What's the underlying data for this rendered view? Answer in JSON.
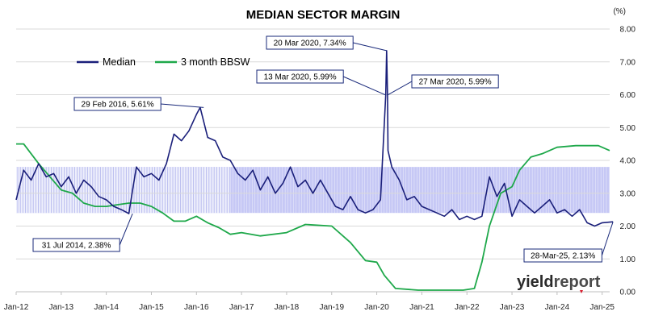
{
  "chart_data": {
    "type": "line",
    "title": "MEDIAN SECTOR MARGIN",
    "y_unit": "(%)",
    "ylim": [
      0,
      8
    ],
    "y_ticks": [
      "0.00",
      "1.00",
      "2.00",
      "3.00",
      "4.00",
      "5.00",
      "6.00",
      "7.00",
      "8.00"
    ],
    "x_ticks": [
      "Jan-12",
      "Jan-13",
      "Jan-14",
      "Jan-15",
      "Jan-16",
      "Jan-17",
      "Jan-18",
      "Jan-19",
      "Jan-20",
      "Jan-21",
      "Jan-22",
      "Jan-23",
      "Jan-24",
      "Jan-25"
    ],
    "xlim": [
      "2012-01",
      "2025-03"
    ],
    "grid": true,
    "legend_position": "top-left",
    "band": {
      "low": 2.4,
      "high": 3.8
    },
    "series": [
      {
        "name": "Median",
        "color": "#1a1f7a",
        "x": [
          "2012-01",
          "2012-03",
          "2012-05",
          "2012-07",
          "2012-09",
          "2012-11",
          "2013-01",
          "2013-03",
          "2013-05",
          "2013-07",
          "2013-09",
          "2013-11",
          "2014-01",
          "2014-03",
          "2014-05",
          "2014-07",
          "2014-08",
          "2014-09",
          "2014-11",
          "2015-01",
          "2015-03",
          "2015-05",
          "2015-07",
          "2015-09",
          "2015-11",
          "2016-01",
          "2016-02",
          "2016-04",
          "2016-06",
          "2016-08",
          "2016-10",
          "2016-12",
          "2017-02",
          "2017-04",
          "2017-06",
          "2017-08",
          "2017-10",
          "2017-12",
          "2018-02",
          "2018-04",
          "2018-06",
          "2018-08",
          "2018-10",
          "2018-12",
          "2019-02",
          "2019-04",
          "2019-06",
          "2019-08",
          "2019-10",
          "2019-12",
          "2020-02",
          "2020-03-13",
          "2020-03-20",
          "2020-03-27",
          "2020-04",
          "2020-05",
          "2020-07",
          "2020-09",
          "2020-11",
          "2021-01",
          "2021-03",
          "2021-05",
          "2021-07",
          "2021-09",
          "2021-11",
          "2022-01",
          "2022-03",
          "2022-05",
          "2022-07",
          "2022-09",
          "2022-11",
          "2023-01",
          "2023-03",
          "2023-05",
          "2023-07",
          "2023-09",
          "2023-11",
          "2024-01",
          "2024-03",
          "2024-05",
          "2024-07",
          "2024-09",
          "2024-11",
          "2025-01",
          "2025-03-28"
        ],
        "values": [
          2.8,
          3.7,
          3.4,
          3.9,
          3.5,
          3.6,
          3.2,
          3.5,
          3.0,
          3.4,
          3.2,
          2.9,
          2.8,
          2.6,
          2.5,
          2.38,
          3.1,
          3.8,
          3.5,
          3.6,
          3.4,
          3.9,
          4.8,
          4.6,
          4.9,
          5.4,
          5.61,
          4.7,
          4.6,
          4.1,
          4.0,
          3.6,
          3.4,
          3.7,
          3.1,
          3.5,
          3.0,
          3.3,
          3.8,
          3.2,
          3.4,
          3.0,
          3.4,
          3.0,
          2.6,
          2.5,
          2.9,
          2.5,
          2.4,
          2.5,
          2.8,
          5.99,
          7.34,
          5.99,
          4.3,
          3.8,
          3.4,
          2.8,
          2.9,
          2.6,
          2.5,
          2.4,
          2.3,
          2.5,
          2.2,
          2.3,
          2.2,
          2.3,
          3.5,
          2.9,
          3.3,
          2.3,
          2.8,
          2.6,
          2.4,
          2.6,
          2.8,
          2.4,
          2.5,
          2.3,
          2.5,
          2.1,
          2.0,
          2.1,
          2.13
        ]
      },
      {
        "name": "3 month BBSW",
        "color": "#1ea84a",
        "x": [
          "2012-01",
          "2012-03",
          "2012-05",
          "2012-07",
          "2012-10",
          "2013-01",
          "2013-04",
          "2013-07",
          "2013-10",
          "2014-01",
          "2014-04",
          "2014-07",
          "2014-10",
          "2015-01",
          "2015-04",
          "2015-07",
          "2015-10",
          "2016-01",
          "2016-04",
          "2016-07",
          "2016-10",
          "2017-01",
          "2017-06",
          "2018-01",
          "2018-06",
          "2019-01",
          "2019-06",
          "2019-10",
          "2020-01",
          "2020-03",
          "2020-06",
          "2020-12",
          "2021-06",
          "2021-12",
          "2022-03",
          "2022-05",
          "2022-07",
          "2022-10",
          "2023-01",
          "2023-03",
          "2023-06",
          "2023-09",
          "2024-01",
          "2024-06",
          "2024-12",
          "2025-03"
        ],
        "values": [
          4.5,
          4.5,
          4.2,
          3.9,
          3.5,
          3.1,
          3.0,
          2.7,
          2.6,
          2.6,
          2.65,
          2.7,
          2.7,
          2.6,
          2.4,
          2.15,
          2.15,
          2.3,
          2.1,
          1.95,
          1.75,
          1.8,
          1.7,
          1.8,
          2.05,
          2.0,
          1.5,
          0.95,
          0.9,
          0.5,
          0.1,
          0.05,
          0.05,
          0.05,
          0.1,
          0.9,
          2.0,
          3.0,
          3.2,
          3.7,
          4.1,
          4.2,
          4.4,
          4.45,
          4.45,
          4.3
        ]
      }
    ],
    "annotations": [
      {
        "text": "20 Mar 2020, 7.34%",
        "x": "2020-03-20",
        "y": 7.34
      },
      {
        "text": "13 Mar 2020, 5.99%",
        "x": "2020-03-13",
        "y": 5.99
      },
      {
        "text": "27 Mar 2020, 5.99%",
        "x": "2020-03-27",
        "y": 5.99
      },
      {
        "text": "29 Feb 2016, 5.61%",
        "x": "2016-02-29",
        "y": 5.61
      },
      {
        "text": "31 Jul 2014, 2.38%",
        "x": "2014-07-31",
        "y": 2.38
      },
      {
        "text": "28-Mar-25, 2.13%",
        "x": "2025-03-28",
        "y": 2.13
      }
    ]
  },
  "brand": {
    "part1": "yield",
    "part2": "report"
  },
  "colors": {
    "median": "#1a1f7a",
    "bbsw": "#1ea84a",
    "band": "#c6c8f5",
    "grid": "#d9d9d9",
    "brand_accent": "#d7182a"
  }
}
